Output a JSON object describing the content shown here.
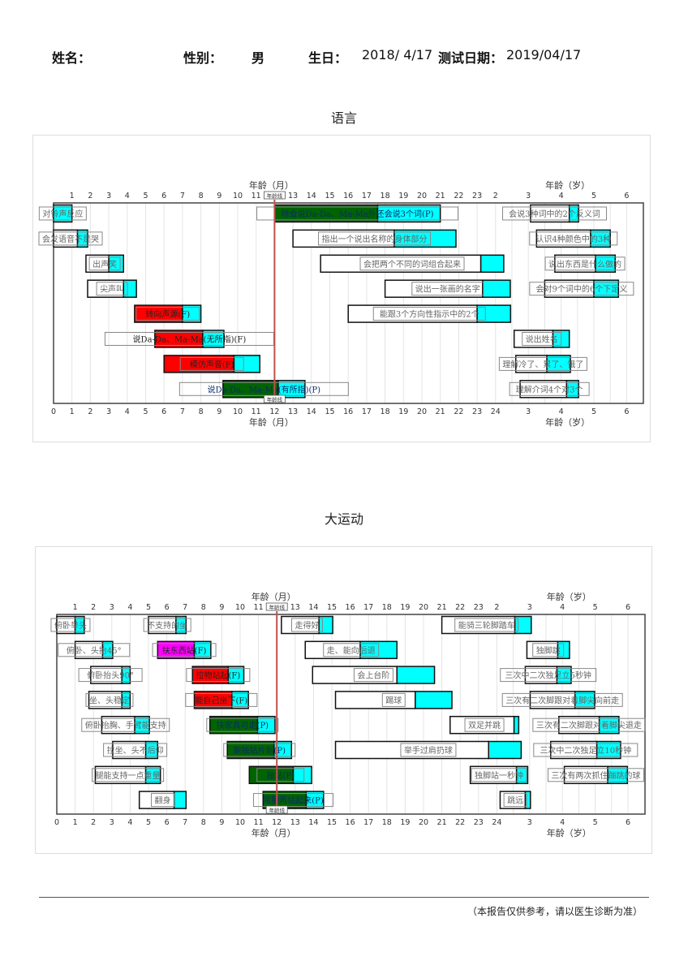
{
  "header": {
    "name_label": "姓名：",
    "gender_label": "性别：",
    "gender_value": "男",
    "birth_label": "生日：",
    "birth_value": "2018/ 4/17",
    "test_label": "测试日期：",
    "test_value": "2019/04/17"
  },
  "footer": {
    "note": "（本报告仅供参考，请以医生诊断为准）"
  },
  "colors": {
    "fail": "#ff0000",
    "pass": "#006400",
    "caution": "#ff00ff",
    "normal": "#ffffff",
    "tail": "#00ffff",
    "age_line": "#c0504d"
  },
  "chart_data": [
    {
      "type": "gantt",
      "title": "语言",
      "xlabel_months": "年龄（月）",
      "xlabel_years": "年龄（岁）",
      "age_line_label": "年龄线",
      "age_line_months": 12,
      "top_month_ticks": [
        1,
        2,
        3,
        4,
        5,
        6,
        7,
        8,
        9,
        10,
        11,
        13,
        14,
        15,
        16,
        17,
        18,
        19,
        20,
        21,
        22,
        23
      ],
      "bottom_month_ticks": [
        0,
        1,
        2,
        3,
        4,
        5,
        6,
        7,
        8,
        9,
        10,
        11,
        12,
        13,
        14,
        15,
        16,
        17,
        18,
        19,
        20,
        21,
        22,
        23,
        24
      ],
      "top_year_ticks": [
        2,
        3,
        4,
        5,
        6
      ],
      "bottom_year_ticks": [
        3,
        4,
        5,
        6
      ],
      "items": [
        {
          "label": "对铃声反应",
          "row": 0,
          "start": 0,
          "split": 0,
          "end": 1,
          "status": "normal"
        },
        {
          "label": "会发语音不是哭",
          "row": 1,
          "start": 0,
          "split": 1.3,
          "end": 1.85,
          "status": "normal"
        },
        {
          "label": "出声笑",
          "row": 2,
          "start": 1.76,
          "split": 3.0,
          "end": 3.8,
          "status": "normal"
        },
        {
          "label": "尖声叫",
          "row": 3,
          "start": 1.85,
          "split": 3.8,
          "end": 4.5,
          "status": "normal"
        },
        {
          "label": "转向声源(F)",
          "row": 4,
          "start": 4.4,
          "split": 7.0,
          "end": 8.0,
          "status": "fail"
        },
        {
          "label": "说Da-Da、Ma-Ma(无所指)(F)",
          "row": 5,
          "start": 5.5,
          "split": 8.1,
          "end": 9.25,
          "status": "fail"
        },
        {
          "label": "模仿声音(F)",
          "row": 6,
          "start": 6.0,
          "split": 9.8,
          "end": 11.2,
          "status": "fail"
        },
        {
          "label": "说Da-Da、Ma-Ma(有所指)(P)",
          "row": 7,
          "start": 9.2,
          "split": 12.2,
          "end": 13.65,
          "status": "pass"
        },
        {
          "label": "除会说Da-Da、Ma-Ma外还会说3个词(P)",
          "row": 0,
          "start": 12.0,
          "split": 17.6,
          "end": 21.0,
          "status": "pass"
        },
        {
          "label": "指出一个说出名称的身体部分",
          "row": 1,
          "start": 13.0,
          "split": 18.5,
          "end": 21.85,
          "status": "normal"
        },
        {
          "label": "会把两个不同的词组合起来",
          "row": 2,
          "start": 14.5,
          "split": 23.2,
          "end": 27,
          "status": "normal"
        },
        {
          "label": "说出一张画的名字",
          "row": 3,
          "start": 18.0,
          "split": 23.3,
          "end": 29.4,
          "status": "normal"
        },
        {
          "label": "能跟3个方向性指示中的2个",
          "row": 4,
          "start": 16.0,
          "split": 23.0,
          "end": 29.5,
          "status": "normal"
        },
        {
          "label": "会说3种词中的2个反义词",
          "row": 0,
          "start": 36.8,
          "split": 51,
          "end": 54.4,
          "status": "normal"
        },
        {
          "label": "认识4种颜色中的3种",
          "row": 1,
          "start": 39,
          "split": 58.8,
          "end": 66,
          "status": "normal"
        },
        {
          "label": "说出东西是什么做的",
          "row": 2,
          "start": 45.7,
          "split": 60.6,
          "end": 67.8,
          "status": "normal"
        },
        {
          "label": "会对9个词中的6个下定义",
          "row": 3,
          "start": 42,
          "split": 60,
          "end": 69,
          "status": "normal"
        },
        {
          "label": "说出姓名",
          "row": 5,
          "start": 30.8,
          "split": 45,
          "end": 51,
          "status": "normal"
        },
        {
          "label": "理解冷了、累了、饿了",
          "row": 6,
          "start": 31.4,
          "split": 42.8,
          "end": 51.4,
          "status": "normal"
        },
        {
          "label": "理解介词4个对3个",
          "row": 7,
          "start": 33,
          "split": 50,
          "end": 54.4,
          "status": "normal"
        }
      ]
    },
    {
      "type": "gantt",
      "title": "大运动",
      "xlabel_months": "年龄（月）",
      "xlabel_years": "年龄（岁）",
      "age_line_label": "年龄线",
      "age_line_months": 12,
      "top_month_ticks": [
        1,
        2,
        3,
        4,
        5,
        6,
        7,
        8,
        9,
        10,
        11,
        13,
        14,
        15,
        16,
        17,
        18,
        19,
        20,
        21,
        22,
        23
      ],
      "bottom_month_ticks": [
        0,
        1,
        2,
        3,
        4,
        5,
        6,
        7,
        8,
        9,
        10,
        11,
        12,
        13,
        14,
        15,
        16,
        17,
        18,
        19,
        20,
        21,
        22,
        23,
        24
      ],
      "top_year_ticks": [
        2,
        3,
        4,
        5,
        6
      ],
      "bottom_year_ticks": [
        3,
        4,
        5,
        6
      ],
      "items": [
        {
          "label": "俯卧举头",
          "row": 0,
          "start": 0,
          "split": 1.0,
          "end": 1.5,
          "status": "normal"
        },
        {
          "label": "俯卧、头抬45°",
          "row": 1,
          "start": 1.0,
          "split": 2.5,
          "end": 3.05,
          "status": "normal"
        },
        {
          "label": "俯卧抬头90°",
          "row": 2,
          "start": 1.85,
          "split": 3.55,
          "end": 4.0,
          "status": "normal"
        },
        {
          "label": "坐、头稳定",
          "row": 3,
          "start": 1.75,
          "split": 3.55,
          "end": 4.0,
          "status": "normal"
        },
        {
          "label": "俯卧抬胸、手臂能支持",
          "row": 4,
          "start": 2.45,
          "split": 4.25,
          "end": 5.05,
          "status": "normal"
        },
        {
          "label": "拉坐、头不后仰",
          "row": 5,
          "start": 3.05,
          "split": 4.85,
          "end": 5.5,
          "status": "normal"
        },
        {
          "label": "腿能支持一点重量",
          "row": 6,
          "start": 2.1,
          "split": 4.85,
          "end": 5.65,
          "status": "normal"
        },
        {
          "label": "翻身",
          "row": 7,
          "start": 4.5,
          "split": 6.4,
          "end": 7.05,
          "status": "normal"
        },
        {
          "label": "不支持的坐",
          "row": 0,
          "start": 5.0,
          "split": 6.5,
          "end": 7.05,
          "status": "normal"
        },
        {
          "label": "扶东西站(F)",
          "row": 1,
          "start": 5.5,
          "split": 7.5,
          "end": 8.4,
          "status": "caution"
        },
        {
          "label": "拉物站起(F)",
          "row": 2,
          "start": 7.4,
          "split": 9.35,
          "end": 10.2,
          "status": "fail"
        },
        {
          "label": "能自己坐下(F)",
          "row": 3,
          "start": 7.5,
          "split": 9.55,
          "end": 10.45,
          "status": "fail"
        },
        {
          "label": "扶家具可走(P)",
          "row": 4,
          "start": 8.35,
          "split": 10.95,
          "end": 11.9,
          "status": "pass"
        },
        {
          "label": "能独站片刻(P)",
          "row": 5,
          "start": 9.3,
          "split": 11.85,
          "end": 12.8,
          "status": "pass"
        },
        {
          "label": "独站(P)",
          "row": 6,
          "start": 10.5,
          "split": 12.9,
          "end": 13.9,
          "status": "pass"
        },
        {
          "label": "弯腰再站起来(P)",
          "row": 7,
          "start": 11.25,
          "split": 13.6,
          "end": 14.55,
          "status": "pass"
        },
        {
          "label": "走得好",
          "row": 0,
          "start": 12.25,
          "split": 14.3,
          "end": 15.05,
          "status": "normal"
        },
        {
          "label": "走、能向后退",
          "row": 1,
          "start": 13.55,
          "split": 16.55,
          "end": 18.55,
          "status": "normal"
        },
        {
          "label": "会上台阶",
          "row": 2,
          "start": 13.95,
          "split": 18.55,
          "end": 20.6,
          "status": "normal"
        },
        {
          "label": "踢球",
          "row": 3,
          "start": 15.2,
          "split": 19.55,
          "end": 21.55,
          "status": "normal"
        },
        {
          "label": "双足并跳",
          "row": 4,
          "start": 21.45,
          "split": 30.3,
          "end": 32,
          "status": "normal"
        },
        {
          "label": "举手过肩扔球",
          "row": 5,
          "start": 15.2,
          "split": 23.55,
          "end": 32.9,
          "status": "normal"
        },
        {
          "label": "独脚站一秒钟",
          "row": 6,
          "start": 22.55,
          "split": 31.2,
          "end": 35.3,
          "status": "normal"
        },
        {
          "label": "跳远",
          "row": 7,
          "start": 25.2,
          "split": 34.4,
          "end": 36.3,
          "status": "normal"
        },
        {
          "label": "能骑三轮脚踏车",
          "row": 0,
          "start": 21.0,
          "split": 30.6,
          "end": 36.6,
          "status": "normal"
        },
        {
          "label": "独脚跳",
          "row": 1,
          "start": 35,
          "split": 46.3,
          "end": 50.6,
          "status": "normal"
        },
        {
          "label": "三次中二次独足立5秒钟",
          "row": 2,
          "start": 34.4,
          "split": 46,
          "end": 51.2,
          "status": "normal"
        },
        {
          "label": "三次有二次脚跟对着脚尖向前走",
          "row": 3,
          "start": 36.2,
          "split": 52.6,
          "end": 59.8,
          "status": "normal"
        },
        {
          "label": "三次有二次脚跟对着脚尖退走",
          "row": 4,
          "start": 46.7,
          "split": 61.5,
          "end": 68.7,
          "status": "normal"
        },
        {
          "label": "三次中二次独足立10秒钟",
          "row": 5,
          "start": 43.7,
          "split": 60.6,
          "end": 69.3,
          "status": "normal"
        },
        {
          "label": "三次有两次抓住蹦跳的球",
          "row": 6,
          "start": 48.7,
          "split": 64.6,
          "end": 71.8,
          "status": "normal"
        }
      ]
    }
  ]
}
